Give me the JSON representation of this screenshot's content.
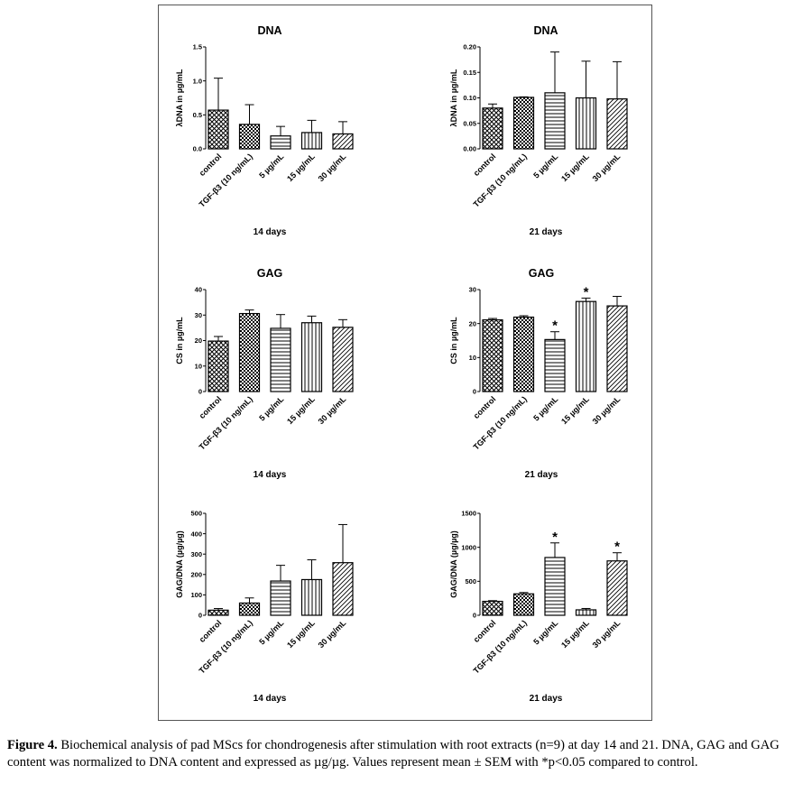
{
  "chart_data": [
    {
      "id": "dna14",
      "type": "bar",
      "title": "DNA",
      "ylabel": "λDNA in µg/mL",
      "xcaption": "14 days",
      "categories": [
        "control",
        "TGF-β3 (10 ng/mL)",
        "5 µg/mL",
        "15 µg/mL",
        "30 µg/mL"
      ],
      "values": [
        0.57,
        0.36,
        0.19,
        0.24,
        0.22
      ],
      "errors": [
        0.47,
        0.29,
        0.14,
        0.18,
        0.18
      ],
      "significant": [
        false,
        false,
        false,
        false,
        false
      ],
      "ylim": [
        0,
        1.5
      ],
      "yticks": [
        "0.0",
        "0.5",
        "1.0",
        "1.5"
      ]
    },
    {
      "id": "dna21",
      "type": "bar",
      "title": "DNA",
      "ylabel": "λDNA in µg/mL",
      "xcaption": "21 days",
      "categories": [
        "control",
        "TGF-β3 (10 ng/mL)",
        "5 µg/mL",
        "15 µg/mL",
        "30 µg/mL"
      ],
      "values": [
        0.08,
        0.101,
        0.11,
        0.1,
        0.098
      ],
      "errors": [
        0.008,
        0.001,
        0.08,
        0.072,
        0.073
      ],
      "significant": [
        false,
        false,
        false,
        false,
        false
      ],
      "ylim": [
        0,
        0.2
      ],
      "yticks": [
        "0.00",
        "0.05",
        "0.10",
        "0.15",
        "0.20"
      ]
    },
    {
      "id": "gag14",
      "type": "bar",
      "title": "GAG",
      "ylabel": "CS in µg/mL",
      "xcaption": "14 days",
      "categories": [
        "control",
        "TGF-β3 (10 ng/mL)",
        "5 µg/mL",
        "15 µg/mL",
        "30 µg/mL"
      ],
      "values": [
        19.8,
        30.6,
        24.8,
        27.0,
        25.2
      ],
      "errors": [
        1.8,
        1.4,
        5.4,
        2.6,
        3.0
      ],
      "significant": [
        false,
        false,
        false,
        false,
        false
      ],
      "ylim": [
        0,
        40
      ],
      "yticks": [
        "0",
        "10",
        "20",
        "30",
        "40"
      ]
    },
    {
      "id": "gag21",
      "type": "bar",
      "title": "GAG",
      "ylabel": "CS in µg/mL",
      "xcaption": "21 days",
      "categories": [
        "control",
        "TGF-β3 (10 ng/mL)",
        "5 µg/mL",
        "15 µg/mL",
        "30 µg/mL"
      ],
      "values": [
        21.1,
        21.9,
        15.3,
        26.5,
        25.2
      ],
      "errors": [
        0.4,
        0.4,
        2.3,
        1.0,
        2.8
      ],
      "significant": [
        false,
        false,
        true,
        true,
        false
      ],
      "ylim": [
        0,
        30
      ],
      "yticks": [
        "0",
        "10",
        "20",
        "30"
      ]
    },
    {
      "id": "gagdna14",
      "type": "bar",
      "title": "",
      "ylabel": "GAG/DNA (µg/µg)",
      "xcaption": "14 days",
      "categories": [
        "control",
        "TGF-β3 (10 ng/mL)",
        "5 µg/mL",
        "15 µg/mL",
        "30 µg/mL"
      ],
      "values": [
        25,
        60,
        168,
        175,
        258
      ],
      "errors": [
        8,
        25,
        77,
        97,
        187
      ],
      "significant": [
        false,
        false,
        false,
        false,
        false
      ],
      "ylim": [
        0,
        500
      ],
      "yticks": [
        "0",
        "100",
        "200",
        "300",
        "400",
        "500"
      ]
    },
    {
      "id": "gagdna21",
      "type": "bar",
      "title": "",
      "ylabel": "GAG/DNA (µg/µg)",
      "xcaption": "21 days",
      "categories": [
        "control",
        "TGF-β3 (10 ng/mL)",
        "5 µg/mL",
        "15 µg/mL",
        "30 µg/mL"
      ],
      "values": [
        205,
        315,
        850,
        80,
        800
      ],
      "errors": [
        10,
        20,
        215,
        20,
        120
      ],
      "significant": [
        false,
        false,
        true,
        false,
        true
      ],
      "ylim": [
        0,
        1500
      ],
      "yticks": [
        "0",
        "500",
        "1000",
        "1500"
      ]
    }
  ],
  "significance_marker": "*",
  "caption": {
    "label": "Figure 4.",
    "text": " Biochemical analysis of pad MScs for chondrogenesis after stimulation with root extracts (n=9) at day 14 and 21. DNA, GAG and GAG content was normalized to DNA content and expressed as µg/µg. Values represent mean ± SEM with *p<0.05 compared to control."
  }
}
